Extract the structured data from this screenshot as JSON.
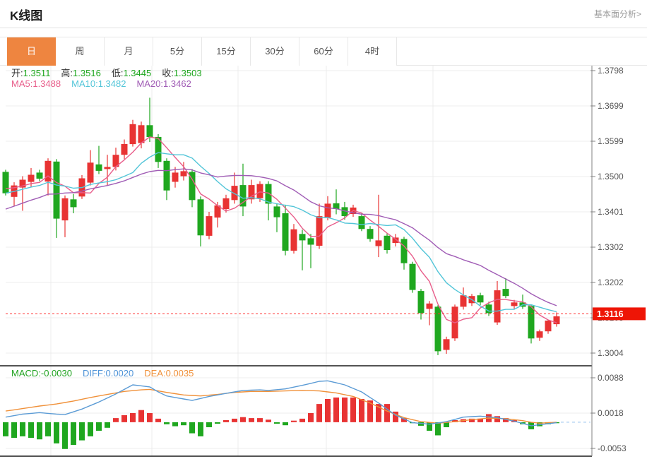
{
  "header": {
    "title": "K线图",
    "link": "基本面分析>"
  },
  "tabs": [
    {
      "name": "tab-day",
      "label": "日",
      "active": true
    },
    {
      "name": "tab-week",
      "label": "周",
      "active": false
    },
    {
      "name": "tab-month",
      "label": "月",
      "active": false
    },
    {
      "name": "tab-5min",
      "label": "5分",
      "active": false
    },
    {
      "name": "tab-15min",
      "label": "15分",
      "active": false
    },
    {
      "name": "tab-30min",
      "label": "30分",
      "active": false
    },
    {
      "name": "tab-60min",
      "label": "60分",
      "active": false
    },
    {
      "name": "tab-4hour",
      "label": "4时",
      "active": false
    }
  ],
  "quote": {
    "fields": [
      {
        "label": "开:",
        "value": "1.3511"
      },
      {
        "label": "高:",
        "value": "1.3516"
      },
      {
        "label": "低:",
        "value": "1.3445"
      },
      {
        "label": "收:",
        "value": "1.3503"
      }
    ]
  },
  "ma_row": [
    {
      "label": "MA5:",
      "value": "1.3488",
      "color": "#e85d8a"
    },
    {
      "label": "MA10:",
      "value": "1.3482",
      "color": "#52c5d8"
    },
    {
      "label": "MA20:",
      "value": "1.3462",
      "color": "#a05cb5"
    }
  ],
  "macd_row": [
    {
      "label": "MACD:",
      "value": "-0.0030",
      "color": "#21a321"
    },
    {
      "label": "DIFF:",
      "value": "0.0020",
      "color": "#4f94d8"
    },
    {
      "label": "DEA:",
      "value": "0.0035",
      "color": "#f0913a"
    }
  ],
  "price_axis": {
    "ticks": [
      "1.3798",
      "1.3699",
      "1.3599",
      "1.3500",
      "1.3401",
      "1.3302",
      "1.3202",
      "1.3103",
      "1.3004"
    ]
  },
  "macd_axis": {
    "ticks": [
      "0.0088",
      "0.0018",
      "-0.0053"
    ]
  },
  "badge": {
    "last_price": "1.3116"
  },
  "colors": {
    "up": "#e83333",
    "down": "#1fa71f",
    "ma5": "#e85d8a",
    "ma10": "#52c5d8",
    "ma20": "#a05cb5",
    "diff": "#5b9bd5",
    "dea": "#f0913a",
    "value_green": "#1ba51b",
    "last_price_line": "#ff2f2f",
    "badge_bg": "#ee1506",
    "badge_text": "#ffffff",
    "grid": "#ececec",
    "axis": "#808080",
    "tick_text": "#555555",
    "separator": "#1a1a1a",
    "zero_dash": "#a9cdf0",
    "tab_active": "#ee8540"
  },
  "chart_data": {
    "type": "candlestick_with_macd",
    "title": "K线图",
    "price_ylim": [
      1.3004,
      1.3798
    ],
    "macd_ylim": [
      -0.0053,
      0.0088
    ],
    "last_price": 1.3116,
    "legend": [
      "MA5",
      "MA10",
      "MA20",
      "MACD",
      "DIFF",
      "DEA"
    ],
    "candles": [
      [
        1.3514,
        1.352,
        1.3448,
        1.3454
      ],
      [
        1.3444,
        1.3485,
        1.3418,
        1.3476
      ],
      [
        1.347,
        1.3502,
        1.3405,
        1.3492
      ],
      [
        1.3486,
        1.3525,
        1.3472,
        1.3506
      ],
      [
        1.3512,
        1.352,
        1.3488,
        1.3495
      ],
      [
        1.3487,
        1.3552,
        1.3448,
        1.3545
      ],
      [
        1.3543,
        1.355,
        1.3329,
        1.3383
      ],
      [
        1.3378,
        1.3448,
        1.3331,
        1.344
      ],
      [
        1.3437,
        1.3452,
        1.3398,
        1.3415
      ],
      [
        1.3445,
        1.3505,
        1.3438,
        1.3496
      ],
      [
        1.3484,
        1.3575,
        1.3476,
        1.354
      ],
      [
        1.3535,
        1.3587,
        1.3508,
        1.3517
      ],
      [
        1.3522,
        1.3562,
        1.3475,
        1.3528
      ],
      [
        1.3528,
        1.3582,
        1.3518,
        1.3562
      ],
      [
        1.3562,
        1.3605,
        1.355,
        1.3592
      ],
      [
        1.3592,
        1.366,
        1.3585,
        1.3648
      ],
      [
        1.3595,
        1.3655,
        1.358,
        1.3645
      ],
      [
        1.3645,
        1.3722,
        1.3598,
        1.3612
      ],
      [
        1.3612,
        1.362,
        1.3525,
        1.3542
      ],
      [
        1.3545,
        1.3552,
        1.3435,
        1.3462
      ],
      [
        1.3486,
        1.3528,
        1.347,
        1.3512
      ],
      [
        1.3502,
        1.3542,
        1.349,
        1.3516
      ],
      [
        1.3514,
        1.3522,
        1.3415,
        1.3435
      ],
      [
        1.3437,
        1.3445,
        1.3305,
        1.3336
      ],
      [
        1.3335,
        1.3402,
        1.3325,
        1.339
      ],
      [
        1.3386,
        1.343,
        1.3358,
        1.342
      ],
      [
        1.341,
        1.345,
        1.34,
        1.344
      ],
      [
        1.3435,
        1.3512,
        1.3425,
        1.3475
      ],
      [
        1.3477,
        1.3537,
        1.339,
        1.3417
      ],
      [
        1.3437,
        1.3492,
        1.3425,
        1.3477
      ],
      [
        1.344,
        1.3488,
        1.343,
        1.348
      ],
      [
        1.348,
        1.3488,
        1.3378,
        1.3425
      ],
      [
        1.3417,
        1.3426,
        1.3345,
        1.3387
      ],
      [
        1.3398,
        1.3422,
        1.328,
        1.3293
      ],
      [
        1.3293,
        1.3368,
        1.3285,
        1.3353
      ],
      [
        1.334,
        1.3352,
        1.3238,
        1.3322
      ],
      [
        1.3328,
        1.334,
        1.3244,
        1.331
      ],
      [
        1.3307,
        1.3425,
        1.3298,
        1.339
      ],
      [
        1.3386,
        1.3446,
        1.3378,
        1.3425
      ],
      [
        1.3426,
        1.3465,
        1.3395,
        1.341
      ],
      [
        1.3415,
        1.343,
        1.338,
        1.339
      ],
      [
        1.3396,
        1.3422,
        1.3388,
        1.3414
      ],
      [
        1.339,
        1.34,
        1.3348,
        1.3354
      ],
      [
        1.3354,
        1.3362,
        1.3318,
        1.3326
      ],
      [
        1.3306,
        1.345,
        1.3275,
        1.3322
      ],
      [
        1.3335,
        1.3342,
        1.3285,
        1.3295
      ],
      [
        1.3315,
        1.334,
        1.3305,
        1.333
      ],
      [
        1.3326,
        1.3332,
        1.324,
        1.3258
      ],
      [
        1.3256,
        1.3262,
        1.3175,
        1.3183
      ],
      [
        1.318,
        1.3186,
        1.31,
        1.3118
      ],
      [
        1.313,
        1.3152,
        1.3084,
        1.3145
      ],
      [
        1.3136,
        1.314,
        1.3,
        1.3011
      ],
      [
        1.3015,
        1.3052,
        1.3004,
        1.3045
      ],
      [
        1.3047,
        1.3142,
        1.304,
        1.3136
      ],
      [
        1.3136,
        1.319,
        1.3128,
        1.3168
      ],
      [
        1.3146,
        1.3172,
        1.3138,
        1.3166
      ],
      [
        1.3168,
        1.3175,
        1.314,
        1.3148
      ],
      [
        1.3142,
        1.315,
        1.311,
        1.3118
      ],
      [
        1.3092,
        1.3208,
        1.3085,
        1.3182
      ],
      [
        1.3186,
        1.3216,
        1.316,
        1.3166
      ],
      [
        1.3138,
        1.3155,
        1.313,
        1.3148
      ],
      [
        1.3148,
        1.317,
        1.313,
        1.3136
      ],
      [
        1.3138,
        1.3142,
        1.3033,
        1.3047
      ],
      [
        1.3049,
        1.3072,
        1.304,
        1.3067
      ],
      [
        1.3067,
        1.31,
        1.306,
        1.3097
      ],
      [
        1.3087,
        1.312,
        1.308,
        1.3109
      ]
    ],
    "prehistory_closes": [
      1.33,
      1.3312,
      1.3322,
      1.3335,
      1.3348,
      1.336,
      1.3372,
      1.3384,
      1.3396,
      1.3406,
      1.3416,
      1.3425,
      1.3434,
      1.3442,
      1.345,
      1.3456,
      1.3462,
      1.3468,
      1.3473,
      1.3478
    ],
    "ma_windows": [
      5,
      10,
      20
    ],
    "macd": {
      "histogram": [
        -0.0028,
        -0.0031,
        -0.0028,
        -0.0031,
        -0.0034,
        -0.0028,
        -0.0042,
        -0.0053,
        -0.0045,
        -0.0036,
        -0.0028,
        -0.0017,
        -0.0011,
        0.0008,
        0.0014,
        0.0018,
        0.0024,
        0.0018,
        0.0007,
        -0.0004,
        -0.0008,
        -0.0006,
        -0.0022,
        -0.0028,
        -0.001,
        -0.0003,
        0.0004,
        0.0007,
        0.001,
        0.0008,
        0.0008,
        0.0005,
        -0.0003,
        -0.0006,
        0.0003,
        0.0007,
        0.0018,
        0.0036,
        0.0046,
        0.0049,
        0.0049,
        0.0049,
        0.0046,
        0.0043,
        0.0036,
        0.0036,
        0.0021,
        0.0008,
        -0.0002,
        -0.0007,
        -0.0017,
        -0.0026,
        -0.001,
        0.0004,
        0.0006,
        0.0007,
        0.0007,
        0.0016,
        0.0012,
        0.0008,
        0.0004,
        -0.0004,
        -0.0014,
        -0.0008,
        -0.0004,
        -0.0002
      ],
      "diff_anchors": [
        [
          0,
          0.001
        ],
        [
          2,
          0.0016
        ],
        [
          4,
          0.0019
        ],
        [
          6,
          0.0016
        ],
        [
          7,
          0.0015
        ],
        [
          9,
          0.0026
        ],
        [
          11,
          0.004
        ],
        [
          13,
          0.0056
        ],
        [
          15,
          0.0074
        ],
        [
          17,
          0.007
        ],
        [
          18,
          0.006
        ],
        [
          19,
          0.0052
        ],
        [
          21,
          0.0046
        ],
        [
          22,
          0.0043
        ],
        [
          24,
          0.0051
        ],
        [
          26,
          0.0057
        ],
        [
          28,
          0.0063
        ],
        [
          30,
          0.0064
        ],
        [
          31,
          0.0063
        ],
        [
          33,
          0.0066
        ],
        [
          35,
          0.0073
        ],
        [
          37,
          0.0081
        ],
        [
          38,
          0.0082
        ],
        [
          40,
          0.0074
        ],
        [
          42,
          0.006
        ],
        [
          44,
          0.0038
        ],
        [
          46,
          0.0014
        ],
        [
          48,
          -0.0001
        ],
        [
          50,
          -0.0004
        ],
        [
          52,
          0.0001
        ],
        [
          54,
          0.001
        ],
        [
          56,
          0.0012
        ],
        [
          58,
          0.0009
        ],
        [
          60,
          0.0002
        ],
        [
          62,
          -0.0007
        ],
        [
          64,
          -0.0003
        ],
        [
          65,
          -0.0001
        ]
      ],
      "dea_anchors": [
        [
          0,
          0.0022
        ],
        [
          2,
          0.0027
        ],
        [
          4,
          0.0032
        ],
        [
          6,
          0.0036
        ],
        [
          8,
          0.0042
        ],
        [
          10,
          0.0049
        ],
        [
          12,
          0.0055
        ],
        [
          14,
          0.0061
        ],
        [
          16,
          0.0064
        ],
        [
          17,
          0.0065
        ],
        [
          19,
          0.0059
        ],
        [
          21,
          0.0054
        ],
        [
          23,
          0.0052
        ],
        [
          25,
          0.0055
        ],
        [
          27,
          0.0059
        ],
        [
          29,
          0.0061
        ],
        [
          31,
          0.0061
        ],
        [
          33,
          0.0062
        ],
        [
          35,
          0.0063
        ],
        [
          37,
          0.0062
        ],
        [
          39,
          0.0058
        ],
        [
          41,
          0.0051
        ],
        [
          43,
          0.0038
        ],
        [
          45,
          0.0022
        ],
        [
          47,
          0.0009
        ],
        [
          49,
          0.0001
        ],
        [
          51,
          -0.0002
        ],
        [
          53,
          0.0001
        ],
        [
          55,
          0.0005
        ],
        [
          57,
          0.0008
        ],
        [
          59,
          0.0007
        ],
        [
          61,
          0.0003
        ],
        [
          62,
          0.0
        ],
        [
          63,
          -0.0002
        ],
        [
          64,
          -0.0001
        ],
        [
          65,
          0.0
        ]
      ]
    }
  }
}
